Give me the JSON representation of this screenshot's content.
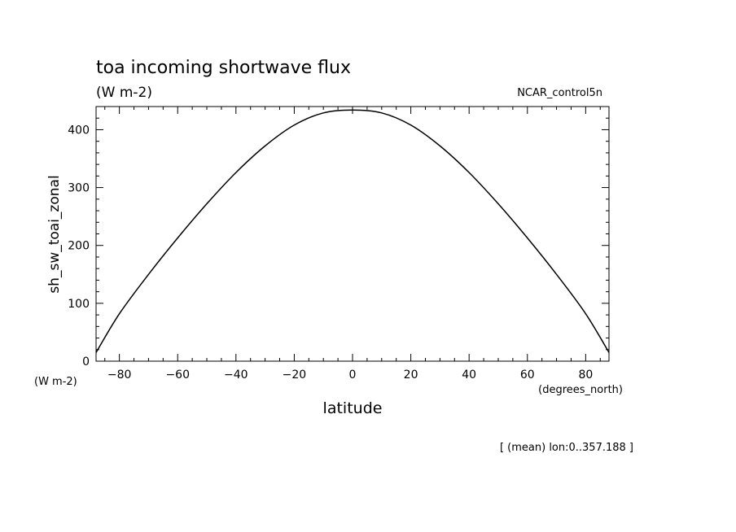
{
  "chart_data": {
    "type": "line",
    "title": "toa incoming shortwave flux",
    "subtitle": "(W m-2)",
    "source_label": "NCAR_control5n",
    "xlabel": "latitude",
    "x_units": "(degrees_north)",
    "ylabel": "sh_sw_toai_zonal",
    "y_units": "(W m-2)",
    "footer": "[ (mean) lon:0..357.188 ]",
    "xlim": [
      -88,
      88
    ],
    "ylim": [
      0,
      440
    ],
    "x_ticks": [
      -80,
      -60,
      -40,
      -20,
      0,
      20,
      40,
      60,
      80
    ],
    "y_ticks": [
      0,
      100,
      200,
      300,
      400
    ],
    "x_tick_labels": [
      "−80",
      "−60",
      "−40",
      "−20",
      "0",
      "20",
      "40",
      "60",
      "80"
    ],
    "y_tick_labels": [
      "0",
      "100",
      "200",
      "300",
      "400"
    ],
    "grid": false,
    "legend": "none",
    "line_color": "#000000",
    "series": [
      {
        "x": [
          -88,
          -80,
          -70,
          -60,
          -50,
          -40,
          -30,
          -20,
          -10,
          0,
          10,
          20,
          30,
          40,
          50,
          60,
          70,
          80,
          88
        ],
        "y": [
          15,
          82,
          150,
          213,
          272,
          326,
          372,
          408,
          429,
          434,
          429,
          408,
          372,
          326,
          272,
          213,
          150,
          82,
          15
        ]
      }
    ]
  }
}
